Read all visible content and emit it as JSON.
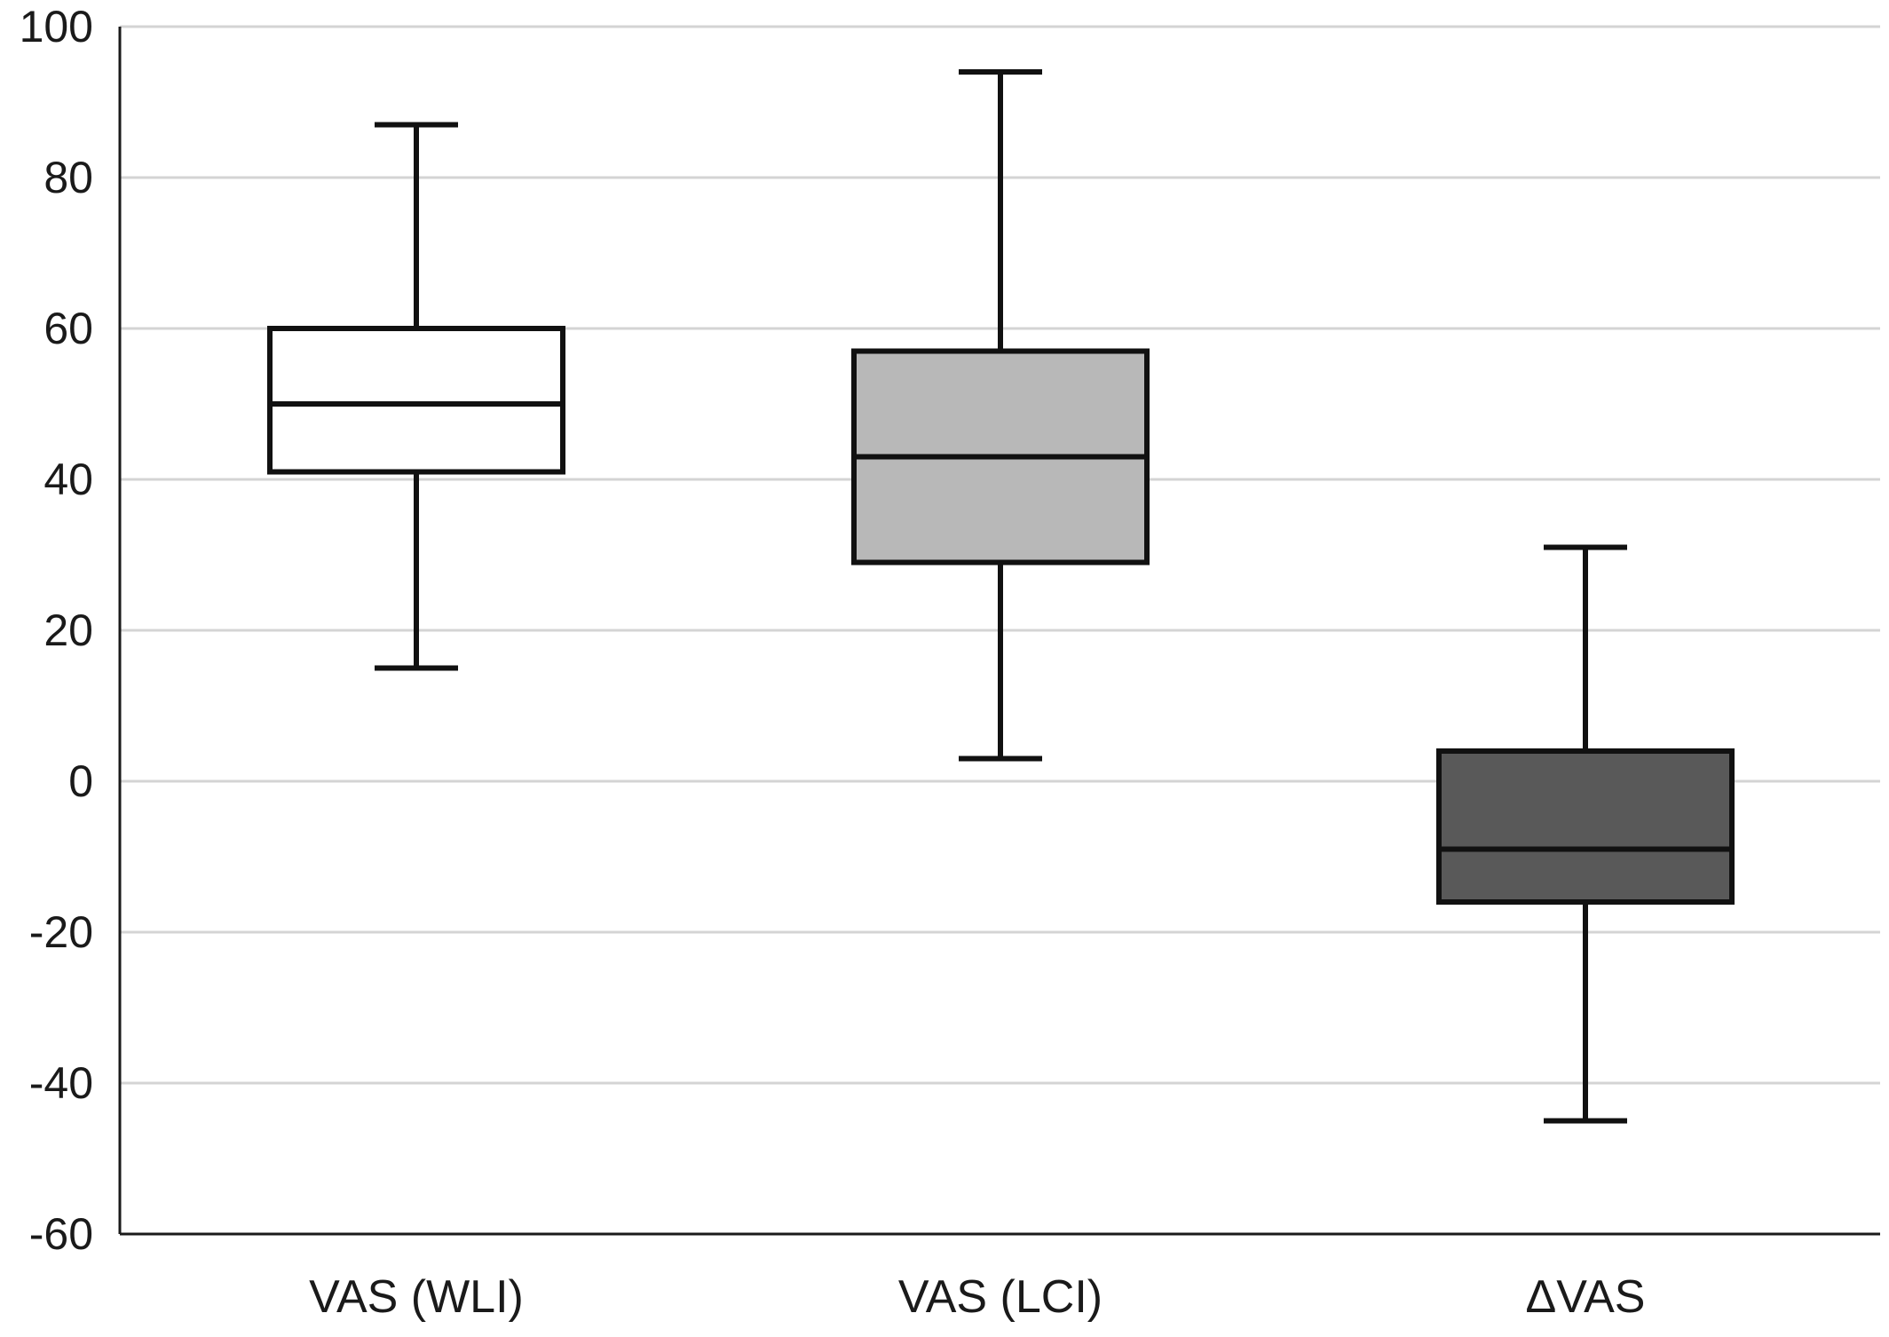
{
  "chart_data": {
    "type": "boxplot",
    "title": "",
    "xlabel": "",
    "ylabel": "",
    "ylim": [
      -60,
      100
    ],
    "yticks": [
      100,
      80,
      60,
      40,
      20,
      0,
      -20,
      -40,
      -60
    ],
    "ytick_labels": [
      "100",
      "80",
      "60",
      "40",
      "20",
      "0",
      "-20",
      "-40",
      "-60"
    ],
    "grid": true,
    "legend": "none",
    "categories": [
      "VAS (WLI)",
      "VAS (LCI)",
      "ΔVAS"
    ],
    "boxes": [
      {
        "category": "VAS (WLI)",
        "min": 15,
        "q1": 41,
        "median": 50,
        "q3": 60,
        "max": 87,
        "fill": "#ffffff"
      },
      {
        "category": "VAS (LCI)",
        "min": 3,
        "q1": 29,
        "median": 43,
        "q3": 57,
        "max": 94,
        "fill": "#b8b8b8"
      },
      {
        "category": "ΔVAS",
        "min": -45,
        "q1": -16,
        "median": -9,
        "q3": 4,
        "max": 31,
        "fill": "#595959"
      }
    ]
  }
}
